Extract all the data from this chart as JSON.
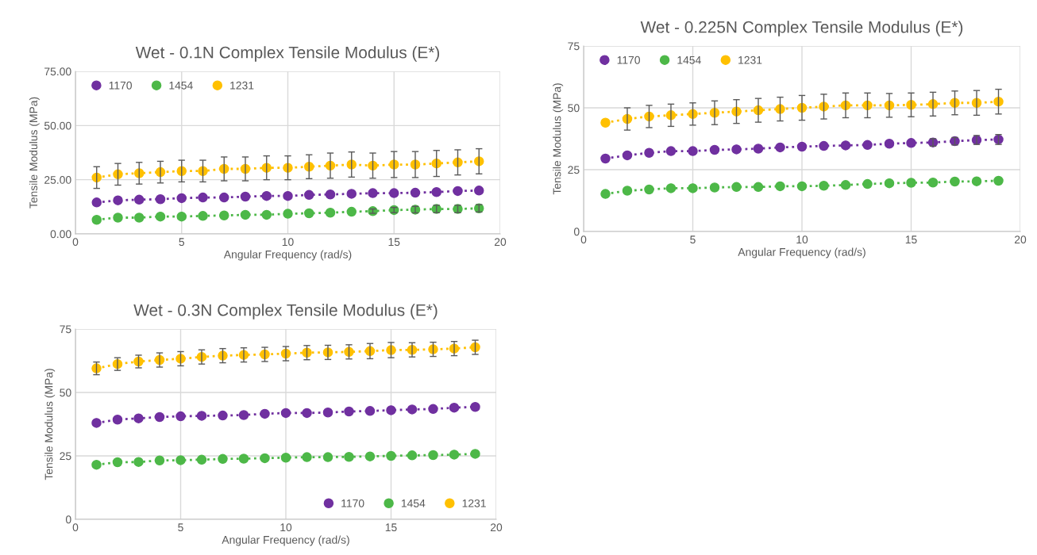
{
  "chart_data": [
    {
      "type": "line",
      "title": "Wet - 0.1N Complex Tensile Modulus (E*)",
      "xlabel": "Angular Frequency (rad/s)",
      "ylabel": "Tensile Modulus (MPa)",
      "x": [
        1,
        2,
        3,
        4,
        5,
        6,
        7,
        8,
        9,
        10,
        11,
        12,
        13,
        14,
        15,
        16,
        17,
        18,
        19
      ],
      "xlim": [
        0,
        20
      ],
      "xticks": [
        0,
        5,
        10,
        15,
        20
      ],
      "ylim": [
        0,
        75
      ],
      "yticks": [
        {
          "value": 0,
          "label": "0.00"
        },
        {
          "value": 25,
          "label": "25.00"
        },
        {
          "value": 50,
          "label": "50.00"
        },
        {
          "value": 75,
          "label": "75.00"
        }
      ],
      "grid": true,
      "legend": "top left",
      "marker": "circle",
      "line_style": "dotted",
      "series": [
        {
          "name": "1170",
          "color": "#7030a0",
          "values": [
            14.5,
            15.5,
            15.8,
            16,
            16.5,
            16.8,
            16.8,
            17.2,
            17.5,
            17.5,
            18,
            18.2,
            18.5,
            18.8,
            18.8,
            19,
            19.3,
            19.8,
            20
          ]
        },
        {
          "name": "1454",
          "color": "#4db848",
          "values": [
            6.5,
            7.5,
            7.5,
            8,
            8,
            8.3,
            8.5,
            8.8,
            8.8,
            9.3,
            9.5,
            9.8,
            10.2,
            10.5,
            11,
            11.2,
            11.5,
            11.5,
            11.8
          ],
          "errors": [
            null,
            null,
            null,
            null,
            null,
            null,
            null,
            null,
            null,
            null,
            null,
            null,
            null,
            1,
            1.2,
            1.5,
            1.7,
            1.7,
            1.7
          ]
        },
        {
          "name": "1231",
          "color": "#ffc000",
          "values": [
            26,
            27.5,
            28,
            28.5,
            29,
            29,
            30,
            30,
            30.5,
            30.5,
            31,
            31.5,
            32,
            31.5,
            32,
            32,
            32.5,
            33,
            33.5
          ],
          "errors": [
            5,
            5,
            5,
            5,
            5,
            5,
            5.5,
            5.5,
            5.5,
            5.5,
            5.5,
            5.8,
            5.8,
            5.8,
            6,
            6,
            6,
            5.8,
            5.8
          ]
        }
      ]
    },
    {
      "type": "line",
      "title": "Wet - 0.225N Complex Tensile Modulus (E*)",
      "xlabel": "Angular Frequency (rad/s)",
      "ylabel": "Tensile Modulus (MPa)",
      "x": [
        1,
        2,
        3,
        4,
        5,
        6,
        7,
        8,
        9,
        10,
        11,
        12,
        13,
        14,
        15,
        16,
        17,
        18,
        19
      ],
      "xlim": [
        0,
        20
      ],
      "xticks": [
        0,
        5,
        10,
        15,
        20
      ],
      "ylim": [
        0,
        75
      ],
      "yticks": [
        0,
        25,
        50,
        75
      ],
      "grid": true,
      "legend": "top left",
      "marker": "circle",
      "line_style": "dotted",
      "series": [
        {
          "name": "1170",
          "color": "#7030a0",
          "values": [
            29.5,
            30.8,
            31.8,
            32.5,
            32.5,
            33,
            33.2,
            33.5,
            34,
            34.3,
            34.6,
            34.8,
            35,
            35.5,
            35.8,
            36,
            36.5,
            37,
            37.2
          ],
          "errors": [
            null,
            null,
            null,
            null,
            null,
            null,
            null,
            null,
            null,
            null,
            null,
            null,
            null,
            null,
            null,
            1.5,
            1.5,
            1.8,
            2
          ]
        },
        {
          "name": "1454",
          "color": "#4db848",
          "values": [
            15.2,
            16.5,
            17,
            17.5,
            17.5,
            17.8,
            18,
            18,
            18.3,
            18.3,
            18.5,
            18.8,
            19.2,
            19.5,
            19.7,
            19.8,
            20.2,
            20.3,
            20.5
          ]
        },
        {
          "name": "1231",
          "color": "#ffc000",
          "values": [
            44,
            45.5,
            46.5,
            47,
            47.5,
            48,
            48.5,
            49,
            49.5,
            50,
            50.5,
            51,
            51,
            51,
            51.2,
            51.5,
            52,
            52,
            52.5
          ],
          "errors": [
            null,
            4.5,
            4.5,
            4.5,
            4.5,
            4.8,
            4.8,
            4.8,
            4.8,
            5,
            5,
            5,
            5,
            4.8,
            4.8,
            4.8,
            4.8,
            5,
            5
          ]
        }
      ]
    },
    {
      "type": "line",
      "title": "Wet - 0.3N Complex Tensile Modulus (E*)",
      "xlabel": "Angular Frequency (rad/s)",
      "ylabel": "Tensile Modulus (MPa)",
      "x": [
        1,
        2,
        3,
        4,
        5,
        6,
        7,
        8,
        9,
        10,
        11,
        12,
        13,
        14,
        15,
        16,
        17,
        18,
        19
      ],
      "xlim": [
        0,
        20
      ],
      "xticks": [
        0,
        5,
        10,
        15,
        20
      ],
      "ylim": [
        0,
        75
      ],
      "yticks": [
        0,
        25,
        50,
        75
      ],
      "grid": true,
      "legend": "bottom right",
      "marker": "circle",
      "line_style": "dotted",
      "series": [
        {
          "name": "1170",
          "color": "#7030a0",
          "values": [
            38,
            39.3,
            39.8,
            40.3,
            40.6,
            40.8,
            40.9,
            41.1,
            41.6,
            41.9,
            41.9,
            42.1,
            42.5,
            42.7,
            43,
            43.3,
            43.5,
            44,
            44.3
          ]
        },
        {
          "name": "1454",
          "color": "#4db848",
          "values": [
            21.5,
            22.5,
            22.6,
            23.2,
            23.3,
            23.5,
            23.8,
            23.9,
            24.1,
            24.3,
            24.5,
            24.5,
            24.6,
            24.8,
            25,
            25.2,
            25.3,
            25.5,
            25.8
          ]
        },
        {
          "name": "1231",
          "color": "#ffc000",
          "values": [
            59.5,
            61.2,
            62.2,
            62.8,
            63.3,
            64,
            64.5,
            64.8,
            65,
            65.3,
            65.7,
            65.8,
            66,
            66.3,
            66.7,
            66.8,
            67,
            67.3,
            67.8
          ],
          "errors": [
            2.5,
            2.5,
            2.5,
            2.8,
            2.8,
            2.8,
            2.8,
            2.8,
            2.8,
            2.8,
            2.8,
            2.8,
            2.8,
            3,
            3,
            2.8,
            2.8,
            2.8,
            2.8
          ]
        }
      ]
    }
  ]
}
